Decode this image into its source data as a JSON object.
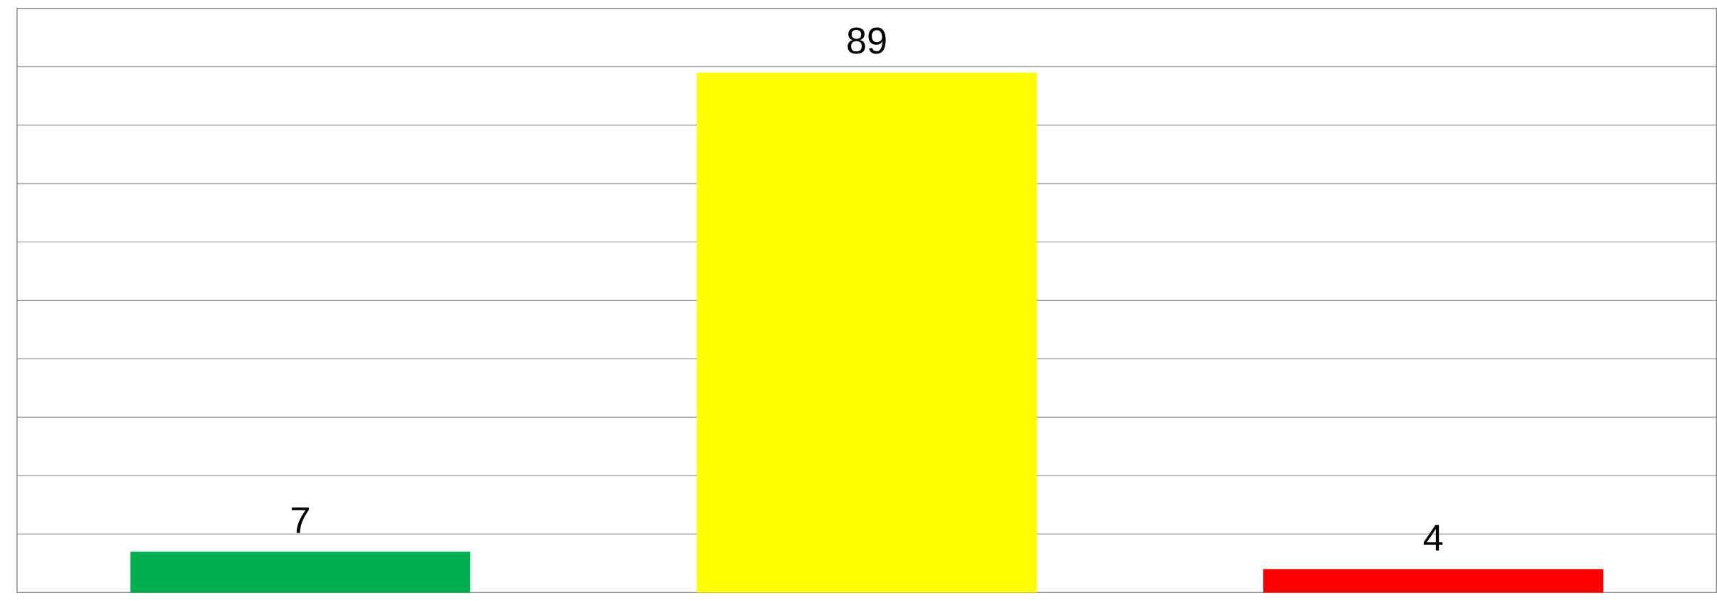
{
  "chart_data": {
    "type": "bar",
    "categories": [
      null,
      null,
      null
    ],
    "values": [
      7,
      89,
      4
    ],
    "colors": [
      "#00b050",
      "#ffff00",
      "#ff0000"
    ],
    "ylim": [
      0,
      100
    ],
    "yticks": [
      {
        "value": 0,
        "label": null
      },
      {
        "value": 10,
        "label": null
      },
      {
        "value": 20,
        "label": null
      },
      {
        "value": 30,
        "label": null
      },
      {
        "value": 40,
        "label": null
      },
      {
        "value": 50,
        "label": null
      },
      {
        "value": 60,
        "label": null
      },
      {
        "value": 70,
        "label": null
      },
      {
        "value": 80,
        "label": null
      },
      {
        "value": 90,
        "label": null
      },
      {
        "value": 100,
        "label": null
      }
    ],
    "grid": "y",
    "data_labels": true
  }
}
